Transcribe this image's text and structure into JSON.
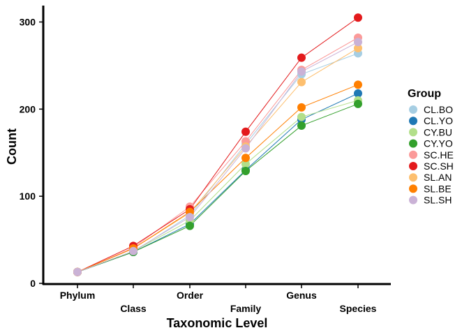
{
  "chart_data": {
    "type": "line",
    "title": "",
    "xlabel": "Taxonomic Level",
    "ylabel": "Count",
    "categories": [
      "Phylum",
      "Class",
      "Order",
      "Family",
      "Genus",
      "Species"
    ],
    "ylim": [
      0,
      315
    ],
    "yticks": [
      0,
      100,
      200,
      300
    ],
    "grid": false,
    "legend": {
      "title": "Group",
      "placement": "right"
    },
    "series": [
      {
        "name": "CL.BO",
        "color": "#a6cee3",
        "values": [
          13,
          36,
          78,
          160,
          240,
          264
        ]
      },
      {
        "name": "CL.YO",
        "color": "#1f78b4",
        "values": [
          13,
          36,
          68,
          130,
          188,
          218
        ]
      },
      {
        "name": "CY.BU",
        "color": "#b2df8a",
        "values": [
          13,
          37,
          72,
          137,
          191,
          210
        ]
      },
      {
        "name": "CY.YO",
        "color": "#33a02c",
        "values": [
          13,
          36,
          66,
          129,
          181,
          206
        ]
      },
      {
        "name": "SC.HE",
        "color": "#fb9a99",
        "values": [
          13,
          41,
          88,
          163,
          245,
          282
        ]
      },
      {
        "name": "SC.SH",
        "color": "#e31a1c",
        "values": [
          13,
          43,
          85,
          174,
          259,
          305
        ]
      },
      {
        "name": "SL.AN",
        "color": "#fdbf6f",
        "values": [
          13,
          40,
          81,
          157,
          231,
          270
        ]
      },
      {
        "name": "SL.BE",
        "color": "#ff7f00",
        "values": [
          13,
          40,
          82,
          144,
          202,
          228
        ]
      },
      {
        "name": "SL.SH",
        "color": "#cab2d6",
        "values": [
          13,
          37,
          76,
          155,
          243,
          277
        ]
      }
    ]
  }
}
